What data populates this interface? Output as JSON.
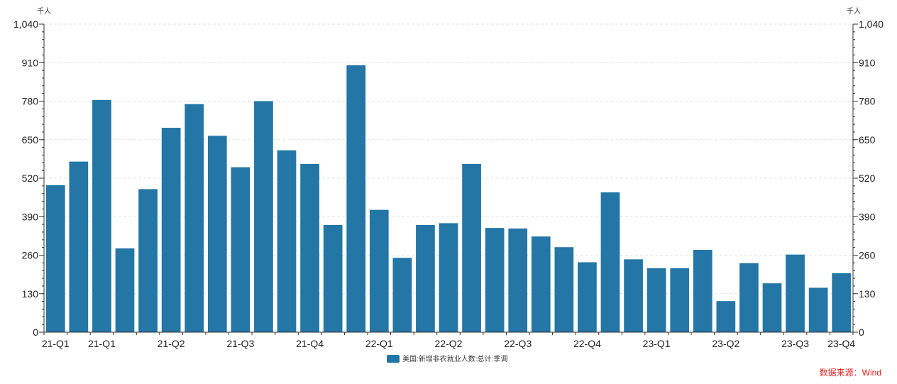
{
  "chart_data": {
    "type": "bar",
    "y_unit_left": "千人",
    "y_unit_right": "千人",
    "ylim": [
      0,
      1040
    ],
    "y_ticks": [
      0,
      130,
      260,
      390,
      520,
      650,
      780,
      910,
      1040
    ],
    "y_tick_labels": [
      "0",
      "130",
      "260",
      "390",
      "520",
      "650",
      "780",
      "910",
      "1,040"
    ],
    "grid": true,
    "legend_position": "bottom-center",
    "x_tick_labels": [
      {
        "label": "21-Q1",
        "bar_index": 0
      },
      {
        "label": "21-Q1",
        "bar_index": 2
      },
      {
        "label": "21-Q2",
        "bar_index": 5
      },
      {
        "label": "21-Q3",
        "bar_index": 8
      },
      {
        "label": "21-Q4",
        "bar_index": 11
      },
      {
        "label": "22-Q1",
        "bar_index": 14
      },
      {
        "label": "22-Q2",
        "bar_index": 17
      },
      {
        "label": "22-Q3",
        "bar_index": 20
      },
      {
        "label": "22-Q4",
        "bar_index": 23
      },
      {
        "label": "23-Q1",
        "bar_index": 26
      },
      {
        "label": "23-Q2",
        "bar_index": 29
      },
      {
        "label": "23-Q3",
        "bar_index": 32
      },
      {
        "label": "23-Q4",
        "bar_index": 34
      }
    ],
    "series": [
      {
        "name": "美国:新增非农就业人数:总计:季调",
        "color": "#2376a5",
        "values": [
          496,
          576,
          784,
          283,
          483,
          690,
          770,
          663,
          557,
          780,
          614,
          568,
          362,
          901,
          413,
          251,
          362,
          368,
          568,
          352,
          350,
          323,
          287,
          236,
          472,
          246,
          216,
          216,
          278,
          105,
          233,
          165,
          262,
          150,
          199
        ]
      }
    ]
  },
  "source": "数据来源：Wind"
}
